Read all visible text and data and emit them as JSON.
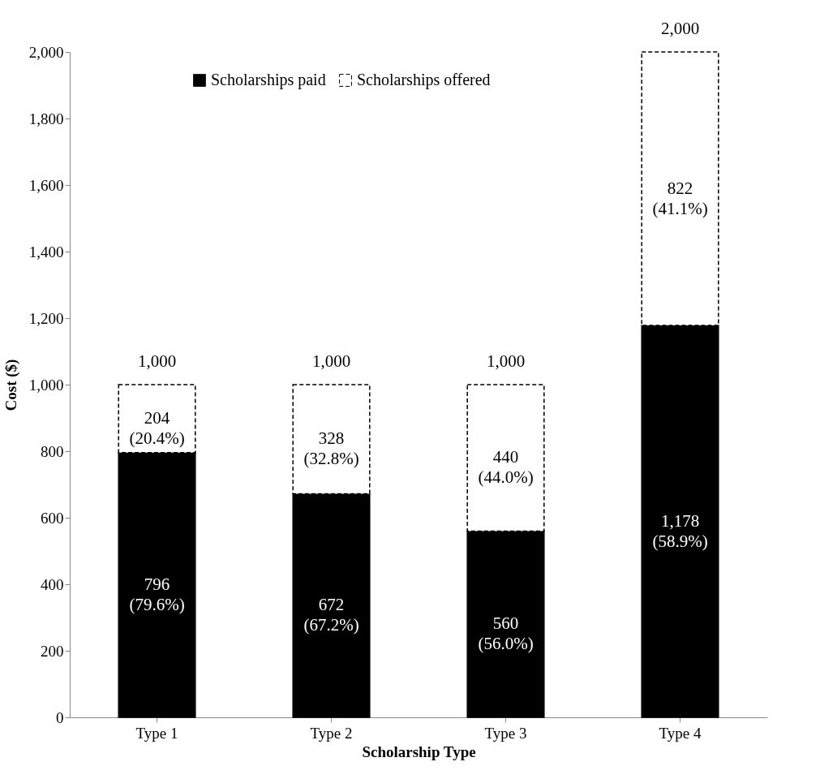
{
  "chart_data": {
    "type": "bar",
    "stacked": true,
    "xlabel": "Scholarship Type",
    "ylabel": "Cost ($)",
    "categories": [
      "Type 1",
      "Type 2",
      "Type 3",
      "Type 4"
    ],
    "series": [
      {
        "name": "Scholarships paid",
        "color": "#000000",
        "values": [
          796,
          672,
          560,
          1178
        ],
        "value_labels": [
          "796\n(79.6%)",
          "672\n(67.2%)",
          "560\n(56.0%)",
          "1,178\n(58.9%)"
        ]
      },
      {
        "name": "Scholarships offered",
        "color": "#ffffff",
        "line_style": "dashed",
        "values": [
          204,
          328,
          440,
          822
        ],
        "value_labels": [
          "204\n(20.4%)",
          "328\n(32.8%)",
          "440\n(44.0%)",
          "822\n(41.1%)"
        ]
      }
    ],
    "totals": [
      "1,000",
      "1,000",
      "1,000",
      "2,000"
    ],
    "ylim": [
      0,
      2000
    ],
    "yticks": [
      0,
      200,
      400,
      600,
      800,
      {
        "value": 1000,
        "label": "1,000"
      },
      {
        "value": 1200,
        "label": "1,200"
      },
      {
        "value": 1400,
        "label": "1,400"
      },
      {
        "value": 1600,
        "label": "1,600"
      },
      {
        "value": 1800,
        "label": "1,800"
      },
      {
        "value": 2000,
        "label": "2,000"
      }
    ],
    "grid": false,
    "legend": "top"
  }
}
